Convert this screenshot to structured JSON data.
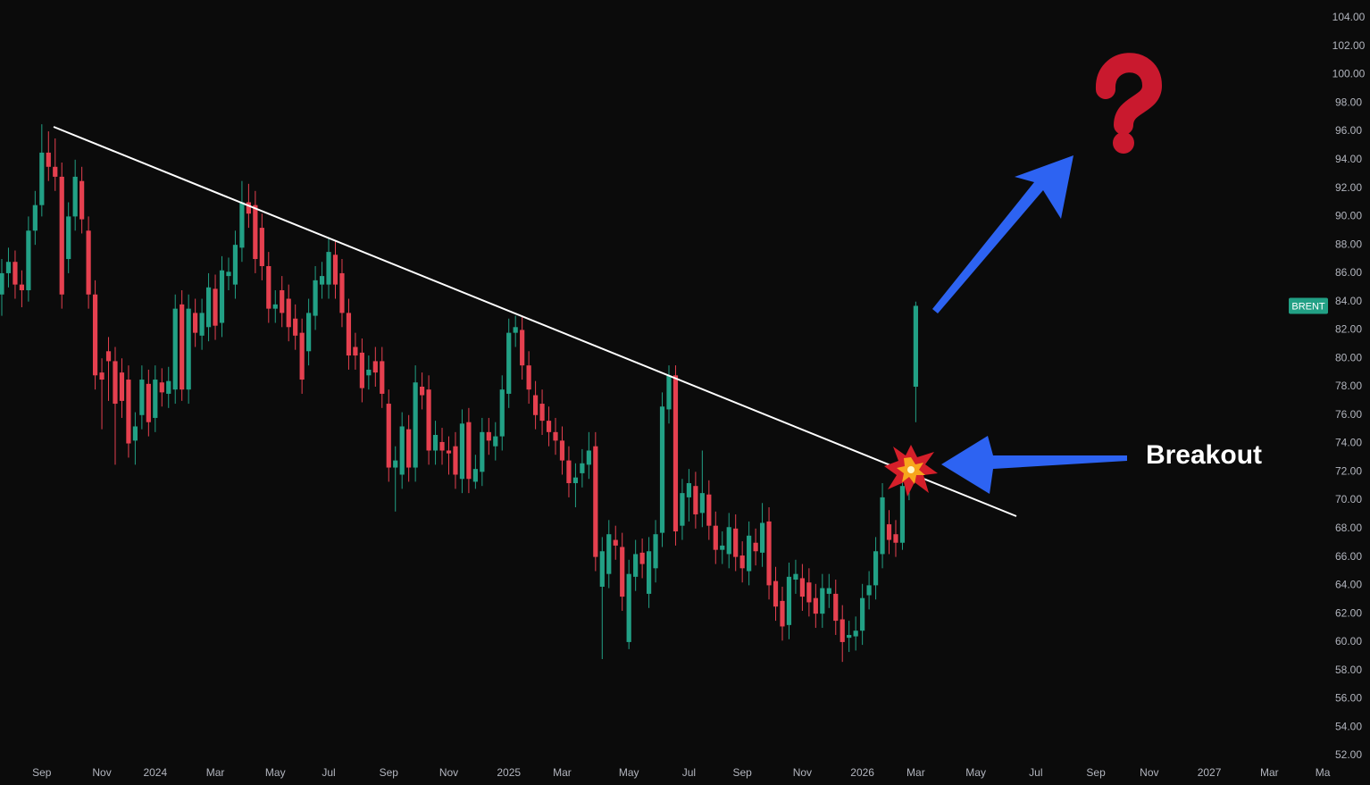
{
  "chart_data": {
    "type": "candlestick",
    "annotation": "Breakout",
    "up_color": "#22a085",
    "down_color": "#e5404f",
    "ylim": [
      52,
      104
    ],
    "yticks": [
      {
        "value": 52,
        "label": "52.00"
      },
      {
        "value": 54,
        "label": "54.00"
      },
      {
        "value": 56,
        "label": "56.00"
      },
      {
        "value": 58,
        "label": "58.00"
      },
      {
        "value": 60,
        "label": "60.00"
      },
      {
        "value": 62,
        "label": "62.00"
      },
      {
        "value": 64,
        "label": "64.00"
      },
      {
        "value": 66,
        "label": "66.00"
      },
      {
        "value": 68,
        "label": "68.00"
      },
      {
        "value": 70,
        "label": "70.00"
      },
      {
        "value": 72,
        "label": "72.00"
      },
      {
        "value": 74,
        "label": "74.00"
      },
      {
        "value": 76,
        "label": "76.00"
      },
      {
        "value": 78,
        "label": "78.00"
      },
      {
        "value": 80,
        "label": "80.00"
      },
      {
        "value": 82,
        "label": "82.00"
      },
      {
        "value": 84,
        "label": "84.00"
      },
      {
        "value": 86,
        "label": "86.00"
      },
      {
        "value": 88,
        "label": "88.00"
      },
      {
        "value": 90,
        "label": "90.00"
      },
      {
        "value": 92,
        "label": "92.00"
      },
      {
        "value": 94,
        "label": "94.00"
      },
      {
        "value": 96,
        "label": "96.00"
      },
      {
        "value": 98,
        "label": "98.00"
      },
      {
        "value": 100,
        "label": "100.00"
      },
      {
        "value": 102,
        "label": "102.00"
      },
      {
        "value": 104,
        "label": "104.00"
      }
    ],
    "grid": false,
    "categories": [
      null,
      null,
      null,
      null,
      null,
      null,
      "Sep",
      null,
      null,
      null,
      null,
      null,
      null,
      null,
      null,
      "Nov",
      null,
      null,
      null,
      null,
      null,
      null,
      null,
      "2024",
      null,
      null,
      null,
      null,
      null,
      null,
      null,
      null,
      "Mar",
      null,
      null,
      null,
      null,
      null,
      null,
      null,
      null,
      "May",
      null,
      null,
      null,
      null,
      null,
      null,
      null,
      "Jul",
      null,
      null,
      null,
      null,
      null,
      null,
      null,
      null,
      "Sep",
      null,
      null,
      null,
      null,
      null,
      null,
      null,
      null,
      "Nov",
      null,
      null,
      null,
      null,
      null,
      null,
      null,
      null,
      "2025",
      null,
      null,
      null,
      null,
      null,
      null,
      null,
      "Mar",
      null,
      null,
      null,
      null,
      null,
      null,
      null,
      null,
      null,
      "May",
      null,
      null,
      null,
      null,
      null,
      null,
      null,
      null,
      "Jul",
      null,
      null,
      null,
      null,
      null,
      null,
      null,
      "Sep",
      null,
      null,
      null,
      null,
      null,
      null,
      null,
      null,
      "Nov",
      null,
      null,
      null,
      null,
      null,
      null,
      null,
      null,
      "2026",
      null,
      null,
      null,
      null,
      null,
      null,
      null,
      "Mar",
      null,
      null,
      null,
      null,
      null,
      null,
      null,
      null,
      "May",
      null,
      null,
      null,
      null,
      null,
      null,
      null,
      null,
      "Jul",
      null,
      null,
      null,
      null,
      null,
      null,
      null,
      null,
      "Sep",
      null,
      null,
      null,
      null,
      null,
      null,
      null,
      "Nov",
      null,
      null,
      null,
      null,
      null,
      null,
      null,
      null,
      "2027",
      null,
      null,
      null,
      null,
      null,
      null,
      null,
      null,
      "Mar",
      null,
      null,
      null,
      null,
      null,
      null,
      null,
      "Ma",
      null
    ],
    "series": [
      {
        "name": "BRENT",
        "open": [
          84.5,
          86,
          86.8,
          85.2,
          84.8,
          89,
          90.8,
          94.5,
          93.5,
          92.8,
          87,
          90,
          92.5,
          89,
          84.5,
          79,
          80.5,
          79.8,
          79,
          78.5,
          74.2,
          76,
          78.2,
          75.8,
          78.3,
          77.5,
          77.8,
          83.8,
          77.8,
          83.2,
          81.6,
          82.2,
          84.9,
          82.5,
          85.8,
          85.2,
          87.8,
          91,
          90.8,
          89.2,
          86.5,
          83.5,
          84.8,
          84.2,
          82.8,
          81.8,
          80.5,
          83,
          85.2,
          85.2,
          87.3,
          86,
          83.2,
          80.8,
          80.4,
          78.8,
          79.8,
          79.8,
          76.8,
          72.3,
          71.8,
          75,
          72.3,
          78,
          77.8,
          73.5,
          74.1,
          73.5,
          73.8,
          71.5,
          75.5,
          71.3,
          72,
          74.8,
          73.8,
          74.5,
          77.5,
          81.8,
          82,
          79.5,
          77.4,
          76.8,
          75.6,
          74.8,
          74.2,
          72.8,
          71.2,
          71.9,
          72.5,
          73.8,
          63.9,
          64.8,
          67.2,
          66.7,
          60,
          64.6,
          66.3,
          63.4,
          65.2,
          67.7,
          76.4,
          78.8,
          68.2,
          70.2,
          71,
          69.1,
          70.4,
          68.2,
          66.5,
          66.2,
          68,
          66.1,
          65,
          67,
          66.3,
          68.5,
          64.3,
          62.9,
          61.2,
          64.4,
          64.5,
          64.2,
          63.1,
          62,
          63.4,
          63.4,
          61.6,
          60.3,
          60.4,
          60.8,
          63.3,
          64,
          66.2,
          68.3,
          67.6,
          67,
          71,
          78,
          null,
          null,
          null,
          null,
          null,
          null,
          null,
          null,
          null,
          null,
          null,
          null,
          null,
          null,
          null,
          null,
          null,
          null,
          null,
          null,
          null,
          null,
          null,
          null,
          null,
          null,
          null,
          null,
          null,
          null,
          null,
          null,
          null,
          null,
          null,
          null,
          null,
          null,
          null,
          null,
          null,
          null,
          null,
          null,
          null,
          null,
          null,
          null,
          null,
          null,
          null,
          null,
          null,
          null,
          null,
          null,
          null,
          null,
          null,
          null,
          null,
          null
        ],
        "high": [
          87,
          87.8,
          87.6,
          86.2,
          90,
          91.8,
          96.5,
          96,
          95.5,
          93.8,
          91,
          94,
          93.5,
          90,
          85.5,
          80,
          81.5,
          80.8,
          80,
          79.5,
          76.2,
          79.5,
          79.2,
          79.5,
          79.3,
          79.4,
          84.5,
          84.8,
          84.5,
          84.2,
          84.2,
          86,
          85.9,
          87.2,
          87.1,
          89,
          92.5,
          92.3,
          91.8,
          90.2,
          87.5,
          84.8,
          85.8,
          85.2,
          83.8,
          82.8,
          84.2,
          86.5,
          86.8,
          88.5,
          88.3,
          87,
          84.2,
          81.8,
          81.4,
          80.2,
          80.8,
          80.8,
          77.8,
          73.8,
          76.2,
          76,
          79.5,
          79,
          78.8,
          75.6,
          75.1,
          74.5,
          74.8,
          76.4,
          76.5,
          73.2,
          75.8,
          75.8,
          75.5,
          78.8,
          82.8,
          83,
          83,
          80.5,
          78.4,
          77.8,
          76.6,
          75.8,
          75.2,
          73.8,
          72.6,
          73.6,
          74.8,
          74.8,
          67.4,
          68.6,
          68.2,
          67.7,
          65.8,
          67.2,
          67.3,
          67.4,
          68.6,
          77.6,
          79.5,
          79.5,
          71.5,
          72.2,
          72,
          73.5,
          71.4,
          69.2,
          67.8,
          69.1,
          69,
          67.1,
          68.5,
          68,
          69.8,
          69.5,
          65.3,
          63.9,
          65.6,
          65.8,
          65.5,
          65.2,
          64.1,
          64.8,
          64.8,
          64.4,
          62.6,
          61.5,
          61.8,
          64.1,
          65,
          67.4,
          71.2,
          69.3,
          68.6,
          72,
          73.2,
          84,
          null,
          null,
          null,
          null,
          null,
          null,
          null,
          null,
          null,
          null,
          null,
          null,
          null,
          null,
          null,
          null,
          null,
          null,
          null,
          null,
          null,
          null,
          null,
          null,
          null,
          null,
          null,
          null,
          null,
          null,
          null,
          null,
          null,
          null,
          null,
          null,
          null,
          null,
          null,
          null,
          null,
          null,
          null,
          null,
          null,
          null,
          null,
          null,
          null,
          null,
          null,
          null,
          null,
          null,
          null,
          null,
          null,
          null,
          null,
          null,
          null,
          null
        ],
        "low": [
          83,
          85,
          84.2,
          83.6,
          84,
          88,
          90,
          92.5,
          91.8,
          83.5,
          86,
          89,
          88.8,
          83.5,
          77.8,
          75,
          77,
          72.5,
          75.8,
          73,
          72.5,
          75,
          74.5,
          74.8,
          76.6,
          76.5,
          76.8,
          77,
          76.8,
          80.8,
          80.6,
          81.2,
          81.3,
          81.5,
          84.8,
          84.2,
          86.8,
          89.2,
          86,
          85.5,
          82.5,
          82.5,
          82.2,
          81.2,
          80.6,
          77.5,
          79.5,
          82,
          84.2,
          84.2,
          84.2,
          82.2,
          79.2,
          79.2,
          76.9,
          77.8,
          78,
          76.5,
          71.3,
          69.2,
          70.8,
          71.3,
          71.3,
          76.4,
          72.5,
          72.5,
          72.5,
          71.8,
          70.8,
          70.5,
          70.5,
          70.8,
          71,
          73.2,
          72.8,
          73.5,
          76.5,
          80.8,
          78.5,
          76.8,
          75,
          74.6,
          73.8,
          73.2,
          71.8,
          70.2,
          69.5,
          70.9,
          71.5,
          65,
          58.8,
          63.8,
          65.8,
          62.2,
          59.5,
          63.6,
          64.5,
          62.4,
          64.2,
          66.7,
          75.4,
          66.8,
          67.2,
          68.5,
          68,
          68.1,
          67.2,
          65.5,
          65.5,
          65.2,
          65,
          64.2,
          64,
          65.4,
          65.3,
          63,
          61.5,
          60.1,
          60.2,
          63.4,
          62.2,
          61.8,
          61,
          61,
          62.4,
          60.5,
          58.6,
          59.3,
          59.4,
          59.8,
          62.3,
          63,
          65.2,
          66.2,
          66,
          66.5,
          70,
          75.5,
          null,
          null,
          null,
          null,
          null,
          null,
          null,
          null,
          null,
          null,
          null,
          null,
          null,
          null,
          null,
          null,
          null,
          null,
          null,
          null,
          null,
          null,
          null,
          null,
          null,
          null,
          null,
          null,
          null,
          null,
          null,
          null,
          null,
          null,
          null,
          null,
          null,
          null,
          null,
          null,
          null,
          null,
          null,
          null,
          null,
          null,
          null,
          null,
          null,
          null,
          null,
          null,
          null,
          null,
          null,
          null,
          null,
          null,
          null,
          null,
          null,
          null
        ],
        "close": [
          86,
          86.8,
          85.2,
          84.8,
          89,
          90.8,
          94.5,
          93.5,
          92.8,
          84.5,
          90,
          92.8,
          89.8,
          84.5,
          78.8,
          78.5,
          79.8,
          76.8,
          77,
          74,
          75.2,
          78.5,
          75.5,
          78.5,
          77.6,
          78.4,
          83.5,
          77.8,
          83.5,
          81.8,
          83.2,
          85,
          82.3,
          86.2,
          86.1,
          88,
          91,
          90.2,
          87,
          86.5,
          83.5,
          83.8,
          83.2,
          82.2,
          81.6,
          78.5,
          83.2,
          85.5,
          85.8,
          87.5,
          85.2,
          83.2,
          80.2,
          80.2,
          77.9,
          79.2,
          79,
          77.5,
          72.3,
          72.8,
          75.2,
          72.3,
          78.3,
          77.4,
          73.5,
          74.6,
          73.5,
          73.3,
          71.8,
          75.4,
          71.5,
          72.2,
          74.8,
          74.2,
          74.5,
          77.8,
          81.8,
          82.2,
          79.5,
          77.8,
          76,
          75.6,
          74.8,
          74.2,
          72.8,
          71.2,
          71.6,
          72.6,
          73.5,
          66,
          66.4,
          67.6,
          66.8,
          63.2,
          64.8,
          66.2,
          65.5,
          66.4,
          67.6,
          76.6,
          78.8,
          67.8,
          70.5,
          71.2,
          69,
          70.5,
          68.2,
          66.5,
          66.8,
          68.1,
          66,
          65.2,
          67.5,
          66.4,
          68.4,
          64,
          62.5,
          61.1,
          64.6,
          64.8,
          63.2,
          62.8,
          62,
          63.8,
          63.8,
          61.5,
          60,
          60.5,
          60.8,
          63.1,
          64,
          66.4,
          70.2,
          67.2,
          67,
          71,
          72.2,
          83.7,
          null,
          null,
          null,
          null,
          null,
          null,
          null,
          null,
          null,
          null,
          null,
          null,
          null,
          null,
          null,
          null,
          null,
          null,
          null,
          null,
          null,
          null,
          null,
          null,
          null,
          null,
          null,
          null,
          null,
          null,
          null,
          null,
          null,
          null,
          null,
          null,
          null,
          null,
          null,
          null,
          null,
          null,
          null,
          null,
          null,
          null,
          null,
          null,
          null,
          null,
          null,
          null,
          null,
          null,
          null,
          null,
          null,
          null,
          null,
          null,
          null,
          null
        ]
      }
    ]
  }
}
